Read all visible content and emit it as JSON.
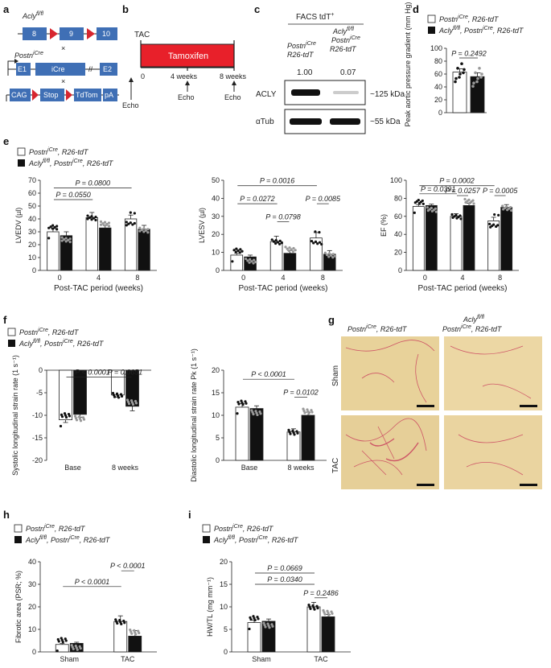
{
  "panels": {
    "a": {
      "label": "a",
      "genes": [
        "Acly",
        "Postn",
        "R26-tdT"
      ],
      "exons_acly": [
        "8",
        "9",
        "10"
      ],
      "exons_postn": [
        "E1",
        "iCre",
        "E2"
      ],
      "reporter": [
        "CAG",
        "Stop",
        "TdTom",
        "pA"
      ],
      "cross": "×",
      "acly_sup": "fl/fl",
      "postn_sup": "iCre"
    },
    "b": {
      "label": "b",
      "tac": "TAC",
      "tamoxifen": "Tamoxifen",
      "ticks": [
        "0",
        "4 weeks",
        "8 weeks"
      ],
      "echo": "Echo"
    },
    "c": {
      "label": "c",
      "title": "FACS tdT",
      "title_sup": "+",
      "col1": "Postn",
      "col1_sup": "iCre",
      "col1_b": "R26-tdT",
      "col2": "Acly",
      "col2_sup": "fl/fl",
      "col2_b": "Postn",
      "col2_b_sup": "iCre",
      "col2_c": "R26-tdT",
      "ratio1": "1.00",
      "ratio2": "0.07",
      "row1": "ACLY",
      "row2": "αTub",
      "kda1": "~125 kDa",
      "kda2": "~55 kDa"
    },
    "d": {
      "label": "d",
      "ylabel": "Peak aortic pressure gradient (mm Hg)",
      "yticks": [
        "0",
        "20",
        "40",
        "60",
        "80",
        "100"
      ],
      "p": "P = 0.2492"
    },
    "e": {
      "label": "e",
      "xlabel": "Post-TAC period (weeks)",
      "xticks": [
        "0",
        "4",
        "8"
      ]
    },
    "f": {
      "label": "f"
    },
    "g": {
      "label": "g",
      "col1": "Postn",
      "col1_sup": "iCre",
      "col1_b": ", R26-tdT",
      "col2": "Acly",
      "col2_sup": "fl/fl",
      "col2_b": "Postn",
      "col2_b_sup": "iCre",
      "col2_c": ", R26-tdT",
      "row1": "Sham",
      "row2": "TAC"
    },
    "h": {
      "label": "h"
    },
    "i": {
      "label": "i"
    }
  },
  "legend": {
    "ctrl": "Postn",
    "ctrl_sup": "iCre",
    "ctrl_tail": ", R26-tdT",
    "ko": "Acly",
    "ko_sup": "fl/fl",
    "ko_mid": ", Postn",
    "ko_mid_sup": "iCre",
    "ko_tail": ", R26-tdT"
  },
  "chart_data": [
    {
      "id": "d",
      "type": "bar",
      "categories": [
        "Postn iCre, R26-tdT",
        "Acly fl/fl, Postn iCre, R26-tdT"
      ],
      "values": [
        63,
        56
      ],
      "errors": [
        5,
        6
      ],
      "ylabel": "Peak aortic pressure gradient (mm Hg)",
      "ylim": [
        0,
        100
      ],
      "annotations": [
        "P = 0.2492"
      ]
    },
    {
      "id": "e1",
      "type": "bar",
      "categories": [
        "0",
        "4",
        "8"
      ],
      "series": [
        {
          "name": "Postn iCre, R26-tdT",
          "values": [
            30,
            41,
            40
          ],
          "errors": [
            2.5,
            4,
            3
          ]
        },
        {
          "name": "Acly fl/fl, Postn iCre, R26-tdT",
          "values": [
            27,
            33,
            32
          ],
          "errors": [
            3,
            2,
            3
          ]
        }
      ],
      "xlabel": "Post-TAC period (weeks)",
      "ylabel": "LVEDV (µl)",
      "yticks": [
        0,
        10,
        20,
        30,
        40,
        50,
        60,
        70
      ],
      "ylim": [
        0,
        70
      ],
      "annotations": [
        "P = 0.0800",
        "P = 0.0550"
      ]
    },
    {
      "id": "e2",
      "type": "bar",
      "categories": [
        "0",
        "4",
        "8"
      ],
      "series": [
        {
          "name": "Postn iCre, R26-tdT",
          "values": [
            8.5,
            16,
            18
          ],
          "errors": [
            1,
            3,
            3
          ]
        },
        {
          "name": "Acly fl/fl, Postn iCre, R26-tdT",
          "values": [
            7.5,
            9.5,
            9
          ],
          "errors": [
            1,
            1.5,
            2
          ]
        }
      ],
      "xlabel": "Post-TAC period (weeks)",
      "ylabel": "LVESV (µl)",
      "yticks": [
        0,
        10,
        20,
        30,
        40,
        50
      ],
      "ylim": [
        0,
        50
      ],
      "annotations": [
        "P = 0.0016",
        "P = 0.0272",
        "P = 0.0798",
        "P = 0.0085"
      ]
    },
    {
      "id": "e3",
      "type": "bar",
      "categories": [
        "0",
        "4",
        "8"
      ],
      "series": [
        {
          "name": "Postn iCre, R26-tdT",
          "values": [
            71,
            60,
            55
          ],
          "errors": [
            2,
            3,
            4
          ]
        },
        {
          "name": "Acly fl/fl, Postn iCre, R26-tdT",
          "values": [
            72,
            72,
            70
          ],
          "errors": [
            1.5,
            2.5,
            3
          ]
        }
      ],
      "xlabel": "Post-TAC period (weeks)",
      "ylabel": "EF (%)",
      "yticks": [
        0,
        20,
        40,
        60,
        80,
        100
      ],
      "ylim": [
        0,
        100
      ],
      "annotations": [
        "P = 0.0002",
        "P = 0.0391",
        "P = 0.0257",
        "P = 0.0005"
      ]
    },
    {
      "id": "f1",
      "type": "bar",
      "categories": [
        "Base",
        "8 weeks"
      ],
      "series": [
        {
          "name": "Postn iCre, R26-tdT",
          "values": [
            -11,
            -5.5
          ],
          "errors": [
            0.6,
            0.5
          ]
        },
        {
          "name": "Acly fl/fl, Postn iCre, R26-tdT",
          "values": [
            -9.8,
            -8
          ],
          "errors": [
            0.6,
            1
          ]
        }
      ],
      "ylabel": "Systolic longitudinal strain rate (1 s⁻¹)",
      "yticks": [
        -20,
        -15,
        -10,
        -5,
        0
      ],
      "ylim": [
        -20,
        0
      ],
      "annotations": [
        "P < 0.0001",
        "P = 0.0651"
      ]
    },
    {
      "id": "f2",
      "type": "bar",
      "categories": [
        "Base",
        "8 weeks"
      ],
      "series": [
        {
          "name": "Postn iCre, R26-tdT",
          "values": [
            11.8,
            6.3
          ],
          "errors": [
            0.8,
            0.7
          ]
        },
        {
          "name": "Acly fl/fl, Postn iCre, R26-tdT",
          "values": [
            11.5,
            10
          ],
          "errors": [
            0.6,
            0.7
          ]
        }
      ],
      "ylabel": "Diastolic longitudinal strain rate Pk (1 s⁻¹)",
      "yticks": [
        0,
        5,
        10,
        15,
        20
      ],
      "ylim": [
        0,
        20
      ],
      "annotations": [
        "P < 0.0001",
        "P = 0.0102"
      ]
    },
    {
      "id": "h",
      "type": "bar",
      "categories": [
        "Sham",
        "TAC"
      ],
      "series": [
        {
          "name": "Postn iCre, R26-tdT",
          "values": [
            3.3,
            13.5
          ],
          "errors": [
            0.4,
            2.5
          ]
        },
        {
          "name": "Acly fl/fl, Postn iCre, R26-tdT",
          "values": [
            3.8,
            7
          ],
          "errors": [
            0.5,
            2.5
          ]
        }
      ],
      "ylabel": "Fibrotic area (PSR; %)",
      "yticks": [
        0,
        10,
        20,
        30,
        40
      ],
      "ylim": [
        0,
        40
      ],
      "annotations": [
        "P < 0.0001",
        "P < 0.0001"
      ]
    },
    {
      "id": "i",
      "type": "bar",
      "categories": [
        "Sham",
        "TAC"
      ],
      "series": [
        {
          "name": "Postn iCre, R26-tdT",
          "values": [
            6.5,
            10
          ],
          "errors": [
            0.5,
            1
          ]
        },
        {
          "name": "Acly fl/fl, Postn iCre, R26-tdT",
          "values": [
            6.8,
            7.8
          ],
          "errors": [
            0.5,
            0.5
          ]
        }
      ],
      "ylabel": "HW/TL (mg mm⁻¹)",
      "yticks": [
        0,
        5,
        10,
        15,
        20
      ],
      "ylim": [
        0,
        20
      ],
      "annotations": [
        "P = 0.0669",
        "P = 0.0340",
        "P = 0.2486"
      ]
    }
  ]
}
